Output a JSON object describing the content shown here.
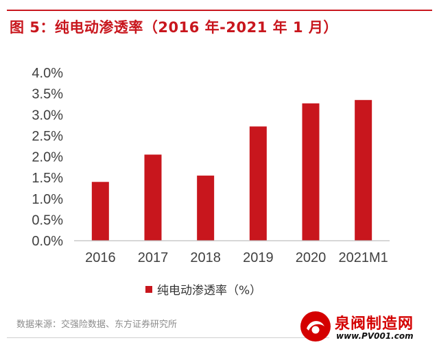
{
  "figure": {
    "title": "图 5：纯电动渗透率（2016 年-2021 年 1 月）",
    "source": "数据来源：交强险数据、东方证券研究所",
    "accent_color": "#c8161d"
  },
  "chart_data": {
    "type": "bar",
    "title": "图 5：纯电动渗透率（2016 年-2021 年 1 月）",
    "categories": [
      "2016",
      "2017",
      "2018",
      "2019",
      "2020",
      "2021M1"
    ],
    "series": [
      {
        "name": "纯电动渗透率（%）",
        "values": [
          1.4,
          2.05,
          1.55,
          2.72,
          3.27,
          3.35
        ],
        "color": "#c8161d"
      }
    ],
    "ylim": [
      0,
      4
    ],
    "yticks": [
      0,
      0.5,
      1,
      1.5,
      2,
      2.5,
      3,
      3.5,
      4
    ],
    "ytick_labels": [
      "0.0%",
      "0.5%",
      "1.0%",
      "1.5%",
      "2.0%",
      "2.5%",
      "3.0%",
      "3.5%",
      "4.0%"
    ],
    "xlabel": "",
    "ylabel": "",
    "grid": false,
    "legend_position": "bottom-center"
  },
  "watermark": {
    "name_cn": "泉阀制造网",
    "url": "www.PV001.com",
    "icon": "valve-logo-icon"
  }
}
